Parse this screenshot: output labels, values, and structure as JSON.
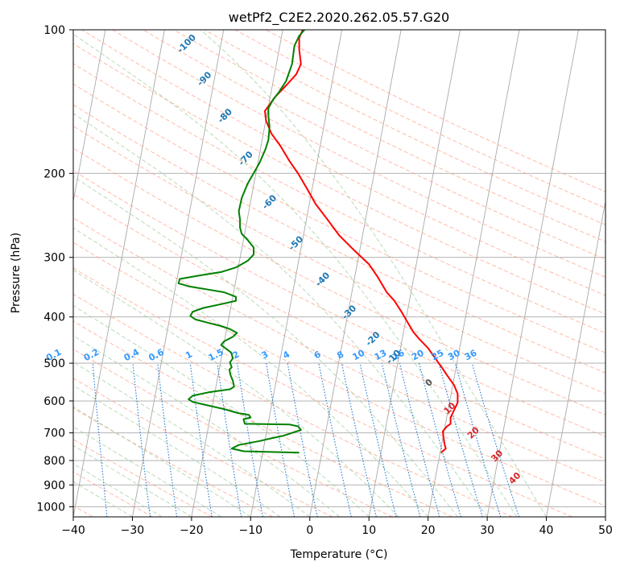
{
  "chart_data": {
    "type": "line",
    "title": "wetPf2_C2E2.2020.262.05.57.G20",
    "xlabel": "Temperature (°C)",
    "ylabel": "Pressure (hPa)",
    "xlim": [
      -40,
      50
    ],
    "ylim": [
      1050,
      100
    ],
    "y_scale": "log",
    "grid": true,
    "x_ticks": [
      "−40",
      "−30",
      "−20",
      "−10",
      "0",
      "10",
      "20",
      "30",
      "40",
      "50"
    ],
    "x_tick_values": [
      -40,
      -30,
      -20,
      -10,
      0,
      10,
      20,
      30,
      40,
      50
    ],
    "y_ticks": [
      100,
      200,
      300,
      400,
      500,
      600,
      700,
      800,
      900,
      1000
    ],
    "colors": {
      "temperature": "#ff0000",
      "dewpoint": "#008000",
      "isotherm": "#a9a9a9",
      "dry_adiabat": "#ff9c80",
      "moist_adiabat": "#90c890",
      "mixing_ratio": "#1e78d2",
      "label_blue": "#1f77b4",
      "label_red": "#d62728",
      "label_mix": "#3399ff"
    },
    "series": [
      {
        "name": "temperature",
        "points": [
          [
            22.2,
            770
          ],
          [
            23,
            755
          ],
          [
            22.8,
            740
          ],
          [
            22.6,
            715
          ],
          [
            22.5,
            695
          ],
          [
            23.1,
            680
          ],
          [
            23.8,
            670
          ],
          [
            23.8,
            650
          ],
          [
            24.2,
            635
          ],
          [
            25,
            605
          ],
          [
            25,
            580
          ],
          [
            24.4,
            556
          ],
          [
            23.2,
            530
          ],
          [
            22.3,
            510
          ],
          [
            21.3,
            490
          ],
          [
            20,
            465
          ],
          [
            18.5,
            445
          ],
          [
            17.5,
            430
          ],
          [
            16.5,
            410
          ],
          [
            15.5,
            390
          ],
          [
            14.3,
            370
          ],
          [
            13,
            355
          ],
          [
            11.5,
            330
          ],
          [
            10,
            310
          ],
          [
            7.5,
            290
          ],
          [
            5,
            270
          ],
          [
            3,
            250
          ],
          [
            1,
            232
          ],
          [
            -0.5,
            215
          ],
          [
            -2,
            200
          ],
          [
            -3.5,
            188
          ],
          [
            -5,
            175
          ],
          [
            -6.5,
            165
          ],
          [
            -7.4,
            155
          ],
          [
            -7.6,
            148
          ],
          [
            -5.8,
            138
          ],
          [
            -3.8,
            130
          ],
          [
            -2.3,
            124
          ],
          [
            -1.5,
            118
          ],
          [
            -1.8,
            110
          ],
          [
            -1.8,
            104
          ],
          [
            -1.2,
            100
          ]
        ]
      },
      {
        "name": "dewpoint",
        "points": [
          [
            -1.8,
            770
          ],
          [
            -11.2,
            765
          ],
          [
            -13.2,
            755
          ],
          [
            -12,
            742
          ],
          [
            -8.5,
            728
          ],
          [
            -6.8,
            720
          ],
          [
            -4.5,
            710
          ],
          [
            -1.5,
            690
          ],
          [
            -2,
            678
          ],
          [
            -3.5,
            672
          ],
          [
            -11,
            670
          ],
          [
            -11.2,
            655
          ],
          [
            -10,
            650
          ],
          [
            -10.3,
            642
          ],
          [
            -12.2,
            636
          ],
          [
            -14.3,
            625
          ],
          [
            -17.5,
            612
          ],
          [
            -19.8,
            603
          ],
          [
            -20.5,
            595
          ],
          [
            -19.8,
            585
          ],
          [
            -17,
            575
          ],
          [
            -13.5,
            567
          ],
          [
            -12.8,
            560
          ],
          [
            -13,
            545
          ],
          [
            -13.4,
            530
          ],
          [
            -13.6,
            516
          ],
          [
            -13.2,
            510
          ],
          [
            -13.5,
            498
          ],
          [
            -13,
            488
          ],
          [
            -13.3,
            475
          ],
          [
            -14,
            468
          ],
          [
            -15,
            458
          ],
          [
            -14.5,
            450
          ],
          [
            -13,
            440
          ],
          [
            -12.3,
            432
          ],
          [
            -13.5,
            424
          ],
          [
            -15,
            418
          ],
          [
            -17,
            412
          ],
          [
            -19.3,
            405
          ],
          [
            -20.2,
            398
          ],
          [
            -19.8,
            390
          ],
          [
            -18,
            383
          ],
          [
            -15,
            376
          ],
          [
            -12.5,
            370
          ],
          [
            -12.5,
            363
          ],
          [
            -14.5,
            355
          ],
          [
            -17.5,
            350
          ],
          [
            -20.5,
            345
          ],
          [
            -22.2,
            340
          ],
          [
            -22,
            333
          ],
          [
            -19,
            328
          ],
          [
            -15,
            322
          ],
          [
            -12.5,
            315
          ],
          [
            -10.5,
            305
          ],
          [
            -9.5,
            296
          ],
          [
            -9.5,
            286
          ],
          [
            -10.5,
            276
          ],
          [
            -11.5,
            268
          ],
          [
            -11.8,
            260
          ],
          [
            -11.8,
            250
          ],
          [
            -12,
            240
          ],
          [
            -11.5,
            225
          ],
          [
            -10.5,
            210
          ],
          [
            -9.5,
            200
          ],
          [
            -8.5,
            190
          ],
          [
            -7.5,
            178
          ],
          [
            -7,
            170
          ],
          [
            -6.8,
            160
          ],
          [
            -7,
            152
          ],
          [
            -7,
            146
          ],
          [
            -6.2,
            140
          ],
          [
            -5.2,
            135
          ],
          [
            -4,
            128
          ],
          [
            -3,
            118
          ],
          [
            -2.6,
            108
          ],
          [
            -1.8,
            103
          ],
          [
            -0.9,
            100
          ]
        ]
      }
    ],
    "labels": {
      "potential_temperature_theta_e": [
        "-100",
        "-90",
        "-80",
        "-70",
        "-60",
        "-50",
        "-40",
        "-30",
        "-20",
        "-10",
        "0",
        "10",
        "20",
        "30",
        "40"
      ],
      "mixing_ratio_g_per_kg": [
        "0.1",
        "0.2",
        "0.4",
        "0.6",
        "1",
        "1.5",
        "2",
        "3",
        "4",
        "6",
        "8",
        "10",
        "13",
        "16",
        "20",
        "25",
        "30",
        "36"
      ]
    }
  }
}
